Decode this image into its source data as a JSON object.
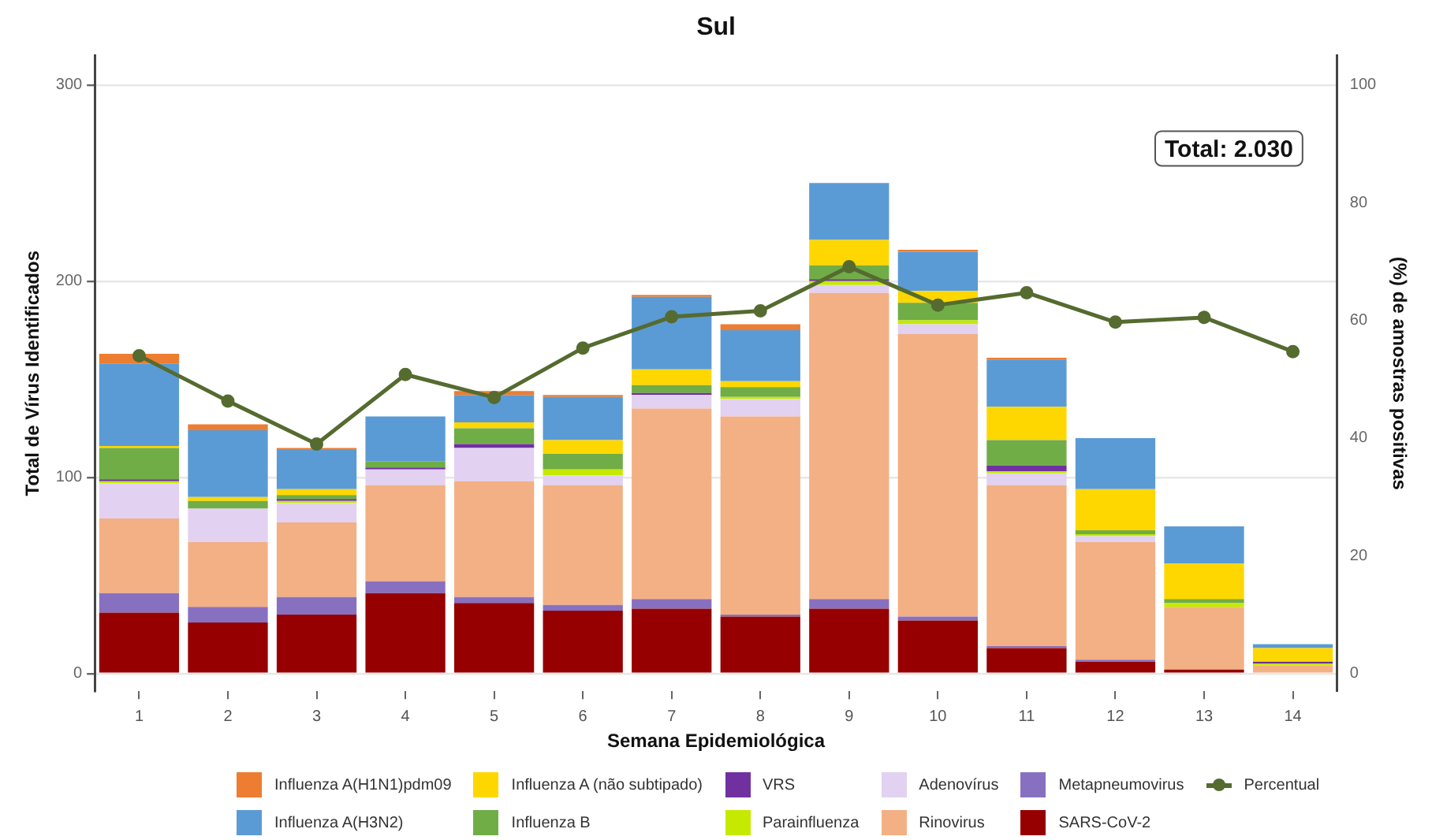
{
  "chart_data": {
    "type": "bar",
    "title": "Sul",
    "xlabel": "Semana Epidemiológica",
    "ylabel": "Total de Vírus Identificados",
    "y2label": "(%) de amostras positivas",
    "categories": [
      "1",
      "2",
      "3",
      "4",
      "5",
      "6",
      "7",
      "8",
      "9",
      "10",
      "11",
      "12",
      "13",
      "14"
    ],
    "stacked": true,
    "series": [
      {
        "name": "SARS-CoV-2",
        "color": "#960000",
        "values": [
          31,
          26,
          30,
          41,
          36,
          32,
          33,
          29,
          33,
          27,
          13,
          6,
          2,
          0
        ]
      },
      {
        "name": "Metapneumovirus",
        "color": "#8870c0",
        "values": [
          10,
          8,
          9,
          6,
          3,
          3,
          5,
          1,
          5,
          2,
          1,
          1,
          0,
          0
        ]
      },
      {
        "name": "Rinovirus",
        "color": "#f3b084",
        "values": [
          38,
          33,
          38,
          49,
          59,
          61,
          97,
          101,
          156,
          144,
          82,
          60,
          32,
          4
        ]
      },
      {
        "name": "Adenovírus",
        "color": "#e2d1f1",
        "values": [
          18,
          17,
          10,
          8,
          17,
          5,
          7,
          9,
          4,
          5,
          6,
          3,
          0,
          0
        ]
      },
      {
        "name": "Parainfluenza",
        "color": "#c5ea00",
        "values": [
          1,
          0,
          1,
          0,
          0,
          3,
          0,
          1,
          2,
          2,
          1,
          1,
          2,
          1
        ]
      },
      {
        "name": "VRS",
        "color": "#7030a0",
        "values": [
          1,
          0,
          1,
          1,
          2,
          0,
          1,
          0,
          1,
          0,
          3,
          0,
          0,
          1
        ]
      },
      {
        "name": "Influenza B",
        "color": "#70ad47",
        "values": [
          16,
          4,
          2,
          3,
          8,
          8,
          4,
          5,
          7,
          9,
          13,
          2,
          2,
          0
        ]
      },
      {
        "name": "Influenza A (não subtipado)",
        "color": "#ffd700",
        "values": [
          1,
          2,
          3,
          0,
          3,
          7,
          8,
          3,
          13,
          6,
          17,
          21,
          18,
          7
        ]
      },
      {
        "name": "Influenza A(H3N2)",
        "color": "#5b9bd5",
        "values": [
          42,
          34,
          20,
          23,
          14,
          22,
          37,
          26,
          29,
          20,
          24,
          26,
          19,
          2
        ]
      },
      {
        "name": "Influenza A(H1N1)pdm09",
        "color": "#ed7d31",
        "values": [
          5,
          3,
          1,
          0,
          2,
          1,
          1,
          3,
          0,
          1,
          1,
          0,
          0,
          0
        ]
      },
      {
        "name": "Percentual",
        "type": "line",
        "axis": "y2",
        "color": "#556b2f",
        "values": [
          54,
          46.3,
          39,
          50.8,
          46.9,
          55.3,
          60.6,
          61.6,
          69.1,
          62.6,
          64.7,
          59.7,
          60.5,
          54.7
        ]
      }
    ],
    "ylim": [
      -9,
      315
    ],
    "yticks": [
      0,
      100,
      200,
      300
    ],
    "y2lim": [
      -3,
      105
    ],
    "y2ticks": [
      0,
      20,
      40,
      60,
      80,
      100
    ],
    "grid": "y",
    "legend": "bottom",
    "marker": "circle",
    "annotations": [
      "Total: 2.030"
    ]
  }
}
